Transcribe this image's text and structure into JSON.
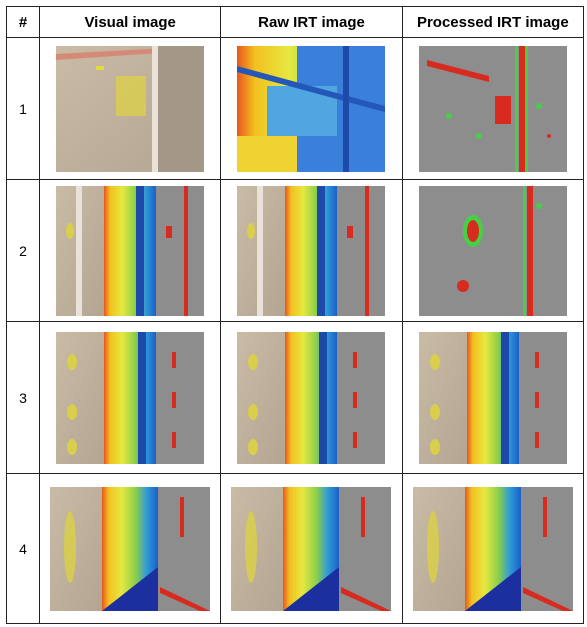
{
  "table": {
    "headers": [
      "#",
      "Visual image",
      "Raw IRT image",
      "Processed IRT image"
    ],
    "rows": [
      {
        "index": "1"
      },
      {
        "index": "2"
      },
      {
        "index": "3"
      },
      {
        "index": "4"
      }
    ]
  }
}
